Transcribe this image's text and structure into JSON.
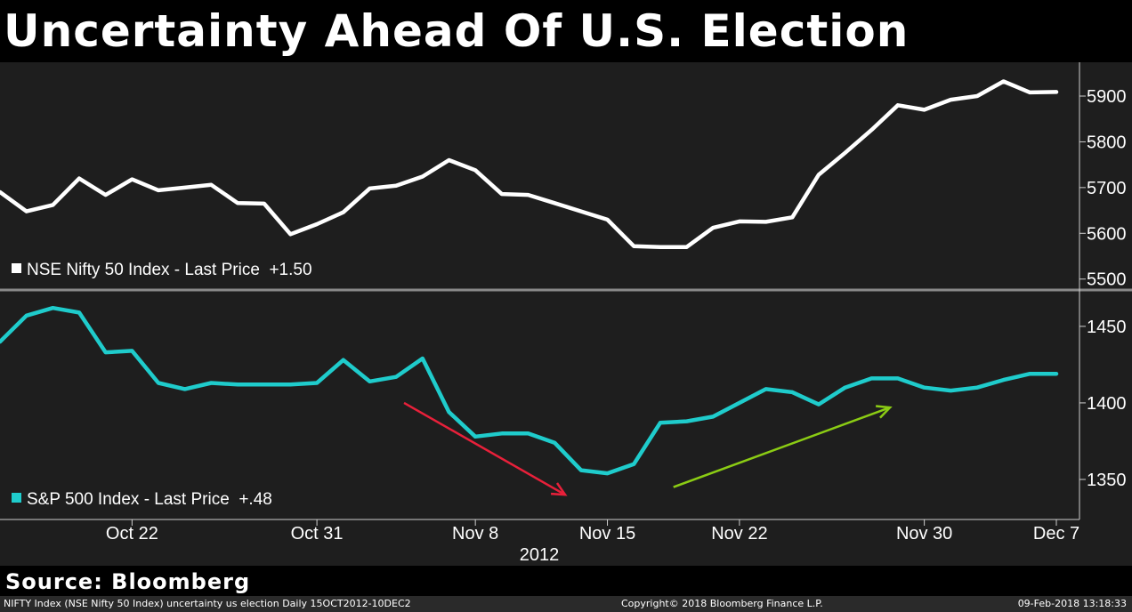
{
  "title": "Uncertainty Ahead Of U.S. Election",
  "source": "Source: Bloomberg",
  "footer": {
    "left": "NIFTY Index (NSE Nifty 50 Index) uncertainty us election  Daily 15OCT2012-10DEC2",
    "center": "Copyright© 2018 Bloomberg Finance L.P.",
    "right": "09-Feb-2018 13:18:33"
  },
  "colors": {
    "background": "#1e1e1e",
    "nifty_line": "#ffffff",
    "spx_line": "#1fcccc",
    "down_arrow": "#e8203a",
    "up_arrow": "#8bcc14"
  },
  "chart_data": [
    {
      "type": "line",
      "title": "NSE Nifty 50 Index",
      "legend": "NSE Nifty 50 Index - Last Price  +1.50",
      "y_ticks": [
        5900,
        5800,
        5700,
        5600,
        5500
      ],
      "y_tick_labels": [
        "5900",
        "5800",
        "5700",
        "5600",
        "5500"
      ],
      "ylim": [
        5480,
        5970
      ],
      "x_index_range": [
        0,
        41
      ],
      "series": [
        {
          "name": "NSE Nifty 50 Index - Last Price",
          "values": [
            5690,
            5648,
            5662,
            5720,
            5684,
            5718,
            5694,
            5700,
            5706,
            5666,
            5665,
            5598,
            5620,
            5646,
            5698,
            5704,
            5724,
            5760,
            5738,
            5686,
            5684,
            5666,
            5648,
            5630,
            5572,
            5570,
            5570,
            5612,
            5626,
            5625,
            5635,
            5728,
            5776,
            5826,
            5880,
            5870,
            5892,
            5900,
            5932,
            5908,
            5909
          ]
        }
      ]
    },
    {
      "type": "line",
      "title": "S&P 500 Index",
      "legend": "S&P 500 Index - Last Price  +.48",
      "y_ticks": [
        1450,
        1400,
        1350
      ],
      "y_tick_labels": [
        "1450",
        "1400",
        "1350"
      ],
      "ylim": [
        1325,
        1472
      ],
      "x_index_range": [
        0,
        41
      ],
      "x_tick_labels": [
        "Oct 22",
        "Oct 31",
        "Nov 8",
        "Nov 15",
        "Nov 22",
        "Nov 30",
        "Dec 7"
      ],
      "x_tick_index": [
        5,
        12,
        18,
        23,
        28,
        35,
        40
      ],
      "x_label": "2012",
      "series": [
        {
          "name": "S&P 500 Index - Last Price",
          "values": [
            1440,
            1457,
            1462,
            1459,
            1433,
            1434,
            1413,
            1409,
            1413,
            1412,
            1412,
            1412,
            1413,
            1428,
            1414,
            1417,
            1429,
            1394,
            1378,
            1380,
            1380,
            1374,
            1356,
            1354,
            1360,
            1387,
            1388,
            1391,
            1400,
            1409,
            1407,
            1399,
            1410,
            1416,
            1416,
            1410,
            1408,
            1410,
            1415,
            1419,
            1419
          ]
        }
      ],
      "annotations": [
        {
          "type": "arrow",
          "color": "red",
          "from_index": 15.3,
          "from_value": 1400,
          "to_index": 21.4,
          "to_value": 1340
        },
        {
          "type": "arrow",
          "color": "green",
          "from_index": 25.5,
          "from_value": 1345,
          "to_index": 33.7,
          "to_value": 1397
        }
      ]
    }
  ]
}
